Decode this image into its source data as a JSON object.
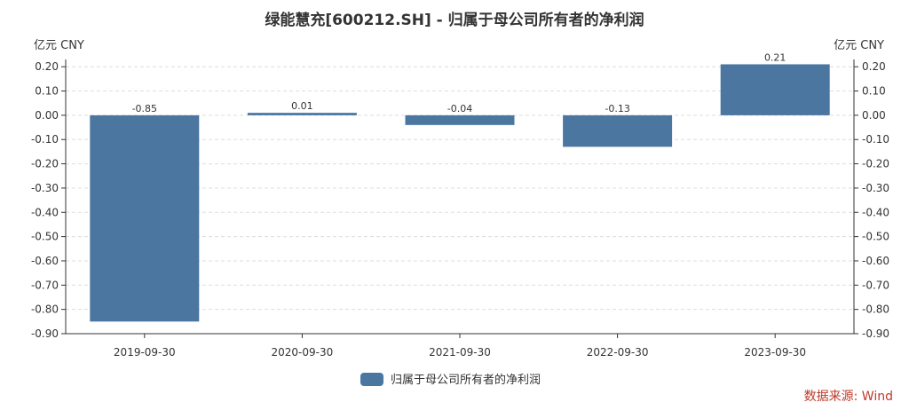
{
  "chart_data": {
    "type": "bar",
    "title": "绿能慧充[600212.SH] - 归属于母公司所有者的净利润",
    "unit_left": "亿元  CNY",
    "unit_right": "亿元  CNY",
    "categories": [
      "2019-09-30",
      "2020-09-30",
      "2021-09-30",
      "2022-09-30",
      "2023-09-30"
    ],
    "series": [
      {
        "name": "归属于母公司所有者的净利润",
        "values": [
          -0.85,
          0.01,
          -0.04,
          -0.13,
          0.21
        ],
        "color": "#4a76a0"
      }
    ],
    "data_labels": [
      "-0.85",
      "0.01",
      "-0.04",
      "-0.13",
      "0.21"
    ],
    "ylim": [
      -0.9,
      0.2
    ],
    "yticks": [
      0.2,
      0.1,
      0.0,
      -0.1,
      -0.2,
      -0.3,
      -0.4,
      -0.5,
      -0.6,
      -0.7,
      -0.8,
      -0.9
    ],
    "ytick_labels": [
      "0.20",
      "0.10",
      "0.00",
      "-0.10",
      "-0.20",
      "-0.30",
      "-0.40",
      "-0.50",
      "-0.60",
      "-0.70",
      "-0.80",
      "-0.90"
    ],
    "grid": true,
    "legend_position": "bottom-center",
    "source": "数据来源: Wind"
  }
}
